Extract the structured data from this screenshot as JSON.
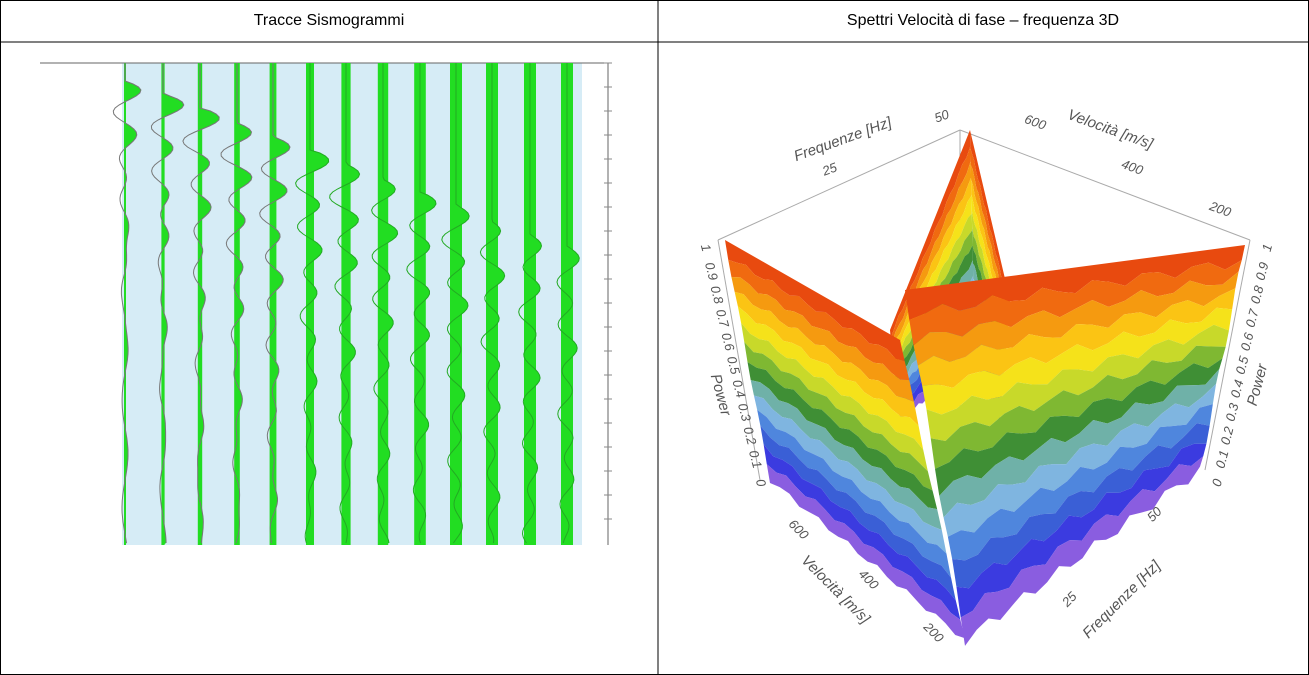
{
  "table": {
    "headers": [
      "Tracce Sismogrammi",
      "Spettri Velocità di fase – frequenza 3D"
    ]
  },
  "spectrum_3d": {
    "top_frequency_label": "Frequenze [Hz]",
    "top_frequency_ticks": [
      "25",
      "50"
    ],
    "top_velocity_label": "Velocità [m/s]",
    "top_velocity_ticks": [
      "600",
      "400",
      "200"
    ],
    "power_label": "Power",
    "power_ticks": [
      "1",
      "0.9",
      "0.8",
      "0.7",
      "0.6",
      "0.5",
      "0.4",
      "0.3",
      "0.2",
      "0.1",
      "0"
    ],
    "bottom_velocity_label": "Velocità [m/s]",
    "bottom_velocity_ticks": [
      "600",
      "400",
      "200"
    ],
    "bottom_frequency_label": "Frequenze [Hz]",
    "bottom_frequency_ticks": [
      "50",
      "25"
    ]
  }
}
